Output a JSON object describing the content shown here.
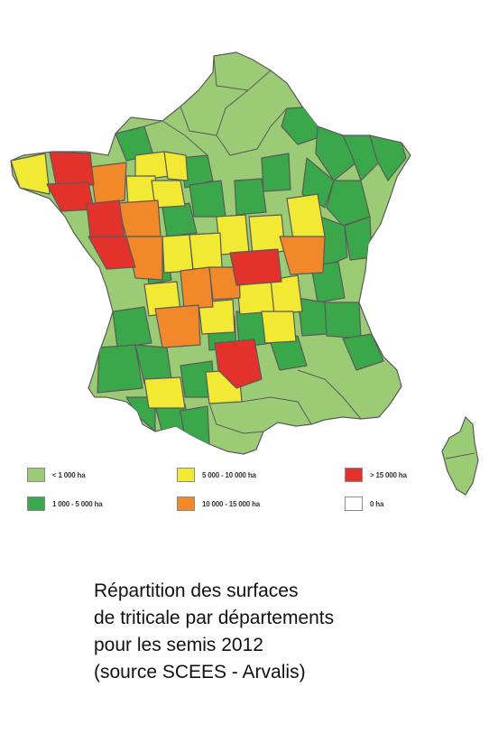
{
  "map": {
    "colors": {
      "lt1000": "#9ccb76",
      "r1000_5000": "#3aa84a",
      "r5000_10000": "#f2e934",
      "r10000_15000": "#f1882a",
      "gt15000": "#e3312c",
      "zero": "#ffffff",
      "border": "#5a5a5a"
    }
  },
  "legend": {
    "items": [
      {
        "label": "< 1 000 ha",
        "color": "#9ccb76"
      },
      {
        "label": "1 000 - 5 000 ha",
        "color": "#3aa84a"
      },
      {
        "label": "5 000 - 10 000 ha",
        "color": "#f2e934"
      },
      {
        "label": "10 000 - 15 000 ha",
        "color": "#f1882a"
      },
      {
        "label": "> 15 000 ha",
        "color": "#e3312c"
      },
      {
        "label": "0 ha",
        "color": "#ffffff"
      }
    ]
  },
  "caption": {
    "line1": "Répartition des surfaces",
    "line2": "de triticale par départements",
    "line3": "pour les semis 2012",
    "line4": "(source SCEES - Arvalis)"
  }
}
